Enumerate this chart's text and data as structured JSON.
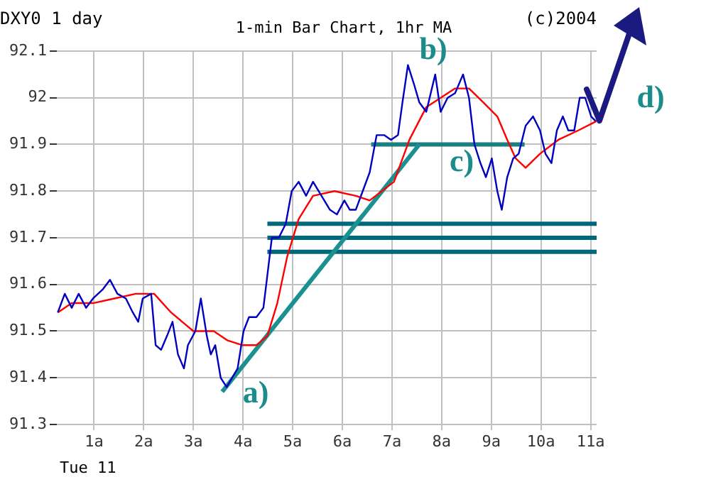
{
  "chart_data": {
    "type": "line",
    "title": "1-min Bar Chart, 1hr MA",
    "annotations": [
      "DXY0 1 day",
      "(c)2004",
      "Tue 11",
      "a)",
      "b)",
      "c)",
      "d)"
    ],
    "xlim": [
      0.25,
      11.12
    ],
    "xticks": [
      {
        "value": 1,
        "label": "1a"
      },
      {
        "value": 2,
        "label": "2a"
      },
      {
        "value": 3,
        "label": "3a"
      },
      {
        "value": 4,
        "label": "4a"
      },
      {
        "value": 5,
        "label": "5a"
      },
      {
        "value": 6,
        "label": "6a"
      },
      {
        "value": 7,
        "label": "7a"
      },
      {
        "value": 8,
        "label": "8a"
      },
      {
        "value": 9,
        "label": "9a"
      },
      {
        "value": 10,
        "label": "10a"
      },
      {
        "value": 11,
        "label": "11a"
      }
    ],
    "ylim": [
      91.3,
      92.1
    ],
    "yticks": [
      91.3,
      91.4,
      91.5,
      91.6,
      91.7,
      91.8,
      91.9,
      92,
      92.1
    ],
    "grid": true,
    "legend": false,
    "marker": "none",
    "series": [
      {
        "color": "#0000c0",
        "x": [
          0.27,
          0.41,
          0.55,
          0.69,
          0.84,
          0.98,
          1.18,
          1.32,
          1.47,
          1.64,
          1.78,
          1.89,
          1.98,
          2.15,
          2.24,
          2.35,
          2.47,
          2.58,
          2.69,
          2.81,
          2.89,
          3.04,
          3.15,
          3.27,
          3.35,
          3.44,
          3.55,
          3.67,
          3.78,
          3.89,
          4.01,
          4.12,
          4.27,
          4.41,
          4.49,
          4.58,
          4.72,
          4.86,
          4.98,
          5.12,
          5.27,
          5.41,
          5.58,
          5.75,
          5.89,
          6.04,
          6.15,
          6.27,
          6.41,
          6.55,
          6.69,
          6.84,
          6.98,
          7.12,
          7.21,
          7.32,
          7.44,
          7.55,
          7.69,
          7.87,
          7.98,
          8.12,
          8.27,
          8.43,
          8.55,
          8.66,
          8.78,
          8.89,
          9.01,
          9.12,
          9.21,
          9.32,
          9.44,
          9.55,
          9.69,
          9.84,
          9.98,
          10.09,
          10.21,
          10.32,
          10.44,
          10.55,
          10.67,
          10.78,
          10.89,
          11.01,
          11.1
        ],
        "values": [
          91.54,
          91.58,
          91.55,
          91.58,
          91.55,
          91.57,
          91.59,
          91.61,
          91.58,
          91.57,
          91.54,
          91.52,
          91.57,
          91.58,
          91.47,
          91.46,
          91.49,
          91.52,
          91.45,
          91.42,
          91.47,
          91.5,
          91.57,
          91.49,
          91.45,
          91.47,
          91.4,
          91.38,
          91.4,
          91.42,
          91.5,
          91.53,
          91.53,
          91.55,
          91.62,
          91.7,
          91.7,
          91.73,
          91.8,
          91.82,
          91.79,
          91.82,
          91.79,
          91.76,
          91.75,
          91.78,
          91.76,
          91.76,
          91.8,
          91.84,
          91.92,
          91.92,
          91.91,
          91.92,
          91.99,
          92.07,
          92.03,
          91.99,
          91.97,
          92.05,
          91.97,
          92,
          92.01,
          92.05,
          92,
          91.9,
          91.86,
          91.83,
          91.87,
          91.8,
          91.76,
          91.83,
          91.87,
          91.88,
          91.94,
          91.96,
          91.93,
          91.88,
          91.86,
          91.93,
          91.96,
          91.93,
          91.93,
          92,
          92,
          91.96,
          91.95
        ]
      },
      {
        "color": "#ff0000",
        "x": [
          0.27,
          0.55,
          0.98,
          1.41,
          1.84,
          2.21,
          2.55,
          3,
          3.41,
          3.69,
          3.98,
          4.27,
          4.49,
          4.69,
          4.89,
          5.12,
          5.41,
          5.84,
          6.27,
          6.55,
          7.04,
          7.35,
          7.69,
          8.27,
          8.55,
          8.84,
          9.12,
          9.32,
          9.49,
          9.69,
          9.98,
          10.35,
          10.75,
          11.12
        ],
        "values": [
          91.54,
          91.56,
          91.56,
          91.57,
          91.58,
          91.58,
          91.54,
          91.5,
          91.5,
          91.48,
          91.47,
          91.47,
          91.49,
          91.56,
          91.66,
          91.74,
          91.79,
          91.8,
          91.79,
          91.78,
          91.82,
          91.91,
          91.98,
          92.02,
          92.02,
          91.99,
          91.96,
          91.91,
          91.87,
          91.85,
          91.88,
          91.91,
          91.93,
          91.95
        ]
      },
      {
        "color": "#1a9090",
        "x": [
          3.58,
          7.55
        ],
        "values": [
          91.37,
          91.9
        ]
      },
      {
        "color": "#1a7f80",
        "x": [
          6.58,
          9.67
        ],
        "values": [
          91.9,
          91.9
        ]
      },
      {
        "color": "#00687a",
        "x": [
          4.49,
          11.12
        ],
        "values": [
          91.73,
          91.73
        ]
      },
      {
        "color": "#00687a",
        "x": [
          4.49,
          11.12
        ],
        "values": [
          91.7,
          91.7
        ]
      },
      {
        "color": "#00687a",
        "x": [
          4.49,
          11.12
        ],
        "values": [
          91.67,
          91.67
        ]
      }
    ]
  }
}
